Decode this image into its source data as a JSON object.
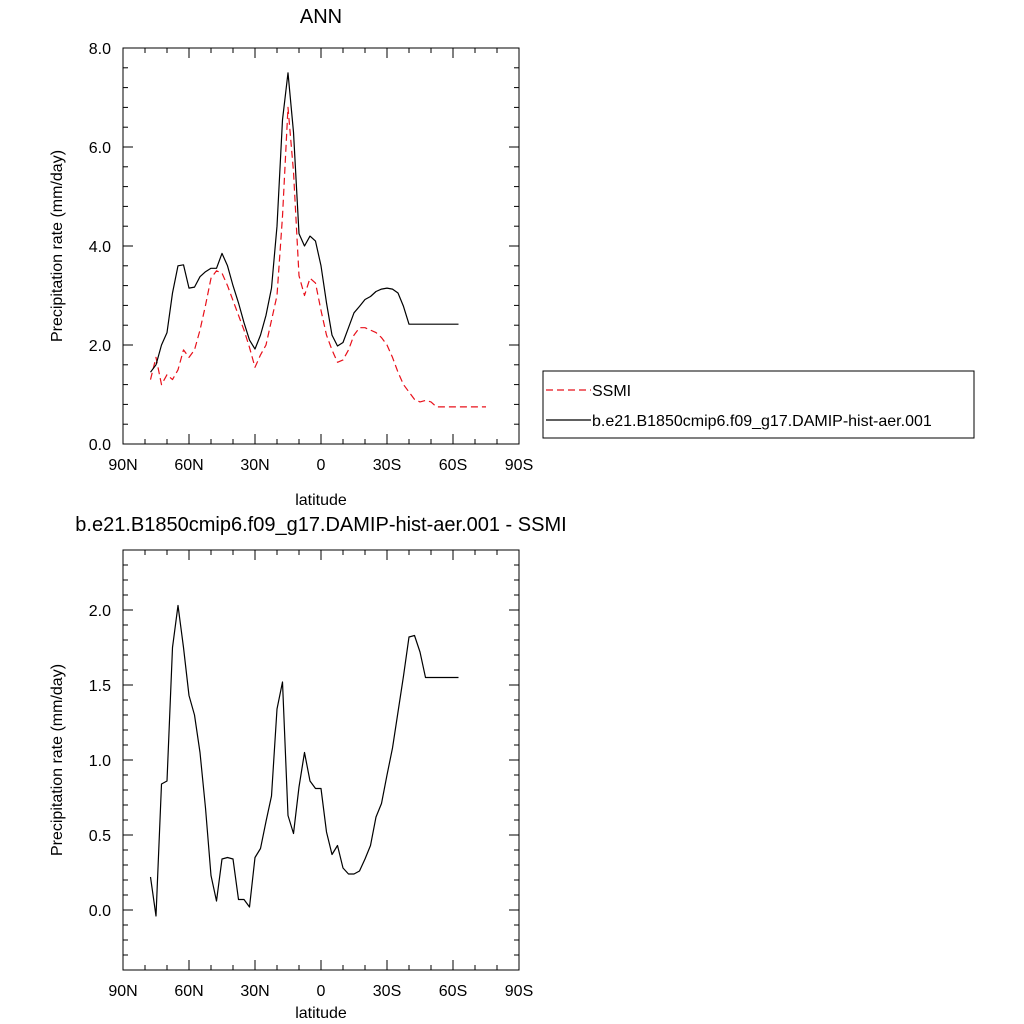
{
  "chart_data": [
    {
      "type": "line",
      "title": "ANN",
      "xlabel": "latitude",
      "ylabel": "Precipitation rate (mm/day)",
      "xlim": [
        90,
        -90
      ],
      "ylim": [
        0,
        8
      ],
      "x_ticks": [
        {
          "value": 90,
          "label": "90N"
        },
        {
          "value": 60,
          "label": "60N"
        },
        {
          "value": 30,
          "label": "30N"
        },
        {
          "value": 0,
          "label": "0"
        },
        {
          "value": -30,
          "label": "30S"
        },
        {
          "value": -60,
          "label": "60S"
        },
        {
          "value": -90,
          "label": "90S"
        }
      ],
      "y_ticks": [
        {
          "value": 0,
          "label": "0.0"
        },
        {
          "value": 2,
          "label": "2.0"
        },
        {
          "value": 4,
          "label": "4.0"
        },
        {
          "value": 6,
          "label": "6.0"
        },
        {
          "value": 8,
          "label": "8.0"
        }
      ],
      "grid": false,
      "legend_position": "right",
      "series": [
        {
          "name": "SSMI",
          "color": "#e8101a",
          "dash": "dashed",
          "x": [
            77.5,
            75,
            72.5,
            70,
            67.5,
            65,
            62.5,
            60,
            57.5,
            55,
            52.5,
            50,
            47.5,
            45,
            42.5,
            40,
            37.5,
            35,
            32.5,
            30,
            27.5,
            25,
            22.5,
            20,
            17.5,
            15,
            12.5,
            10,
            7.5,
            5,
            2.5,
            0,
            -2.5,
            -5,
            -7.5,
            -10,
            -12.5,
            -15,
            -17.5,
            -20,
            -22.5,
            -25,
            -27.5,
            -30,
            -32.5,
            -35,
            -37.5,
            -40,
            -42.5,
            -45,
            -47.5,
            -50,
            -52.5,
            -55,
            -57.5,
            -60,
            -62.5,
            -65,
            -67.5,
            -70,
            -72.5,
            -75
          ],
          "values": [
            1.3,
            1.75,
            1.2,
            1.4,
            1.3,
            1.5,
            1.9,
            1.75,
            1.9,
            2.3,
            2.8,
            3.35,
            3.5,
            3.45,
            3.2,
            2.9,
            2.6,
            2.3,
            1.95,
            1.55,
            1.8,
            2.0,
            2.5,
            3.0,
            4.6,
            6.8,
            5.5,
            3.4,
            3.0,
            3.35,
            3.25,
            2.7,
            2.2,
            1.9,
            1.65,
            1.7,
            1.9,
            2.2,
            2.35,
            2.35,
            2.3,
            2.25,
            2.15,
            2.0,
            1.75,
            1.45,
            1.2,
            1.05,
            0.9,
            0.85,
            0.88,
            0.85,
            0.75,
            0.75,
            0.75,
            0.75,
            0.75,
            0.75,
            0.75,
            0.75,
            0.75,
            0.75
          ]
        },
        {
          "name": "b.e21.B1850cmip6.f09_g17.DAMIP-hist-aer.001",
          "color": "#000000",
          "dash": "solid",
          "x": [
            77.5,
            75,
            72.5,
            70,
            67.5,
            65,
            62.5,
            60,
            57.5,
            55,
            52.5,
            50,
            47.5,
            45,
            42.5,
            40,
            37.5,
            35,
            32.5,
            30,
            27.5,
            25,
            22.5,
            20,
            17.5,
            15,
            12.5,
            10,
            7.5,
            5,
            2.5,
            0,
            -2.5,
            -5,
            -7.5,
            -10,
            -12.5,
            -15,
            -17.5,
            -20,
            -22.5,
            -25,
            -27.5,
            -30,
            -32.5,
            -35,
            -37.5,
            -40,
            -42.5,
            -45,
            -47.5,
            -50,
            -52.5,
            -55,
            -57.5,
            -60,
            -62.5
          ],
          "values": [
            1.45,
            1.6,
            2.0,
            2.25,
            3.05,
            3.6,
            3.62,
            3.15,
            3.17,
            3.38,
            3.48,
            3.55,
            3.55,
            3.85,
            3.6,
            3.2,
            2.85,
            2.45,
            2.1,
            1.92,
            2.2,
            2.6,
            3.15,
            4.4,
            6.55,
            7.5,
            6.3,
            4.25,
            4.0,
            4.2,
            4.1,
            3.6,
            2.85,
            2.2,
            1.98,
            2.05,
            2.35,
            2.65,
            2.78,
            2.92,
            2.98,
            3.08,
            3.13,
            3.15,
            3.13,
            3.05,
            2.78,
            2.42,
            2.42,
            2.42,
            2.42,
            2.42,
            2.42,
            2.42,
            2.42,
            2.42,
            2.42
          ]
        }
      ]
    },
    {
      "type": "line",
      "title": "b.e21.B1850cmip6.f09_g17.DAMIP-hist-aer.001 - SSMI",
      "xlabel": "latitude",
      "ylabel": "Precipitation rate (mm/day)",
      "xlim": [
        90,
        -90
      ],
      "ylim": [
        -0.4,
        2.4
      ],
      "x_ticks": [
        {
          "value": 90,
          "label": "90N"
        },
        {
          "value": 60,
          "label": "60N"
        },
        {
          "value": 30,
          "label": "30N"
        },
        {
          "value": 0,
          "label": "0"
        },
        {
          "value": -30,
          "label": "30S"
        },
        {
          "value": -60,
          "label": "60S"
        },
        {
          "value": -90,
          "label": "90S"
        }
      ],
      "y_ticks": [
        {
          "value": 0,
          "label": "0.0"
        },
        {
          "value": 0.5,
          "label": "0.5"
        },
        {
          "value": 1,
          "label": "1.0"
        },
        {
          "value": 1.5,
          "label": "1.5"
        },
        {
          "value": 2,
          "label": "2.0"
        }
      ],
      "grid": false,
      "series": [
        {
          "color": "#000000",
          "dash": "solid",
          "x": [
            77.5,
            75,
            72.5,
            70,
            67.5,
            65,
            62.5,
            60,
            57.5,
            55,
            52.5,
            50,
            47.5,
            45,
            42.5,
            40,
            37.5,
            35,
            32.5,
            30,
            27.5,
            25,
            22.5,
            20,
            17.5,
            15,
            12.5,
            10,
            7.5,
            5,
            2.5,
            0,
            -2.5,
            -5,
            -7.5,
            -10,
            -12.5,
            -15,
            -17.5,
            -20,
            -22.5,
            -25,
            -27.5,
            -30,
            -32.5,
            -35,
            -37.5,
            -40,
            -42.5,
            -45,
            -47.5,
            -50,
            -52.5,
            -55,
            -57.5,
            -60,
            -62.5
          ],
          "values": [
            0.22,
            -0.04,
            0.84,
            0.86,
            1.75,
            2.03,
            1.75,
            1.43,
            1.3,
            1.05,
            0.68,
            0.23,
            0.06,
            0.34,
            0.35,
            0.34,
            0.07,
            0.07,
            0.02,
            0.35,
            0.41,
            0.59,
            0.76,
            1.34,
            1.52,
            0.63,
            0.51,
            0.82,
            1.05,
            0.86,
            0.81,
            0.81,
            0.52,
            0.37,
            0.43,
            0.28,
            0.24,
            0.24,
            0.26,
            0.34,
            0.43,
            0.62,
            0.71,
            0.9,
            1.08,
            1.32,
            1.56,
            1.82,
            1.83,
            1.72,
            1.55,
            1.55,
            1.55,
            1.55,
            1.55,
            1.55,
            1.55
          ]
        }
      ]
    }
  ]
}
